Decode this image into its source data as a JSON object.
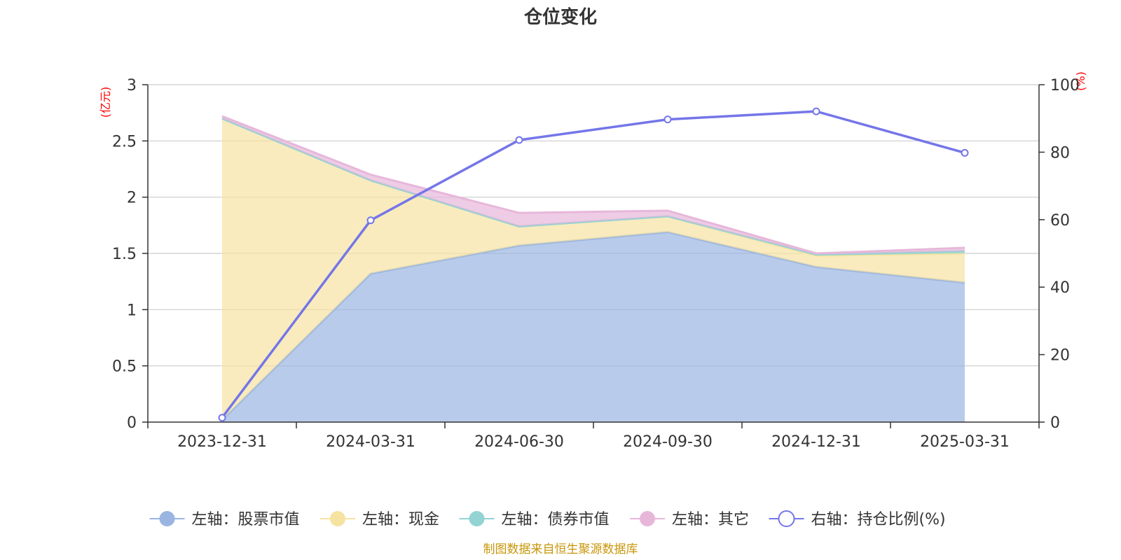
{
  "chart_data": {
    "type": "area",
    "title": "仓位变化",
    "categories": [
      "2023-12-31",
      "2024-03-31",
      "2024-06-30",
      "2024-09-30",
      "2024-12-31",
      "2025-03-31"
    ],
    "left_axis": {
      "unit": "(亿元)",
      "ylim": [
        0,
        3
      ],
      "ticks": [
        "0",
        "0.5",
        "1",
        "1.5",
        "2",
        "2.5",
        "3"
      ],
      "tick_values": [
        0,
        0.5,
        1,
        1.5,
        2,
        2.5,
        3
      ]
    },
    "right_axis": {
      "unit": "(%)",
      "ylim": [
        0,
        100
      ],
      "ticks": [
        "0",
        "20",
        "40",
        "60",
        "80",
        "100"
      ],
      "tick_values": [
        0,
        20,
        40,
        60,
        80,
        100
      ]
    },
    "stacked_series": [
      {
        "name": "左轴：股票市值",
        "color": "#9ab5e1",
        "values": [
          0.02,
          1.32,
          1.57,
          1.69,
          1.38,
          1.24
        ]
      },
      {
        "name": "左轴：现金",
        "color": "#f6e3a2",
        "values": [
          2.68,
          0.83,
          0.17,
          0.14,
          0.1,
          0.26
        ]
      },
      {
        "name": "左轴：债券市值",
        "color": "#93d3d4",
        "values": [
          0,
          0,
          0,
          0,
          0.01,
          0.02
        ]
      },
      {
        "name": "左轴：其它",
        "color": "#e7b7da",
        "values": [
          0.02,
          0.05,
          0.12,
          0.05,
          0.01,
          0.03
        ]
      }
    ],
    "line_series": {
      "name": "右轴：持仓比例(%)",
      "color": "#7476e8",
      "values": [
        1.3,
        59.8,
        83.6,
        89.7,
        92.1,
        79.8
      ]
    },
    "grid": true,
    "legend_position": "bottom"
  },
  "footer": {
    "source": "制图数据来自恒生聚源数据库"
  }
}
